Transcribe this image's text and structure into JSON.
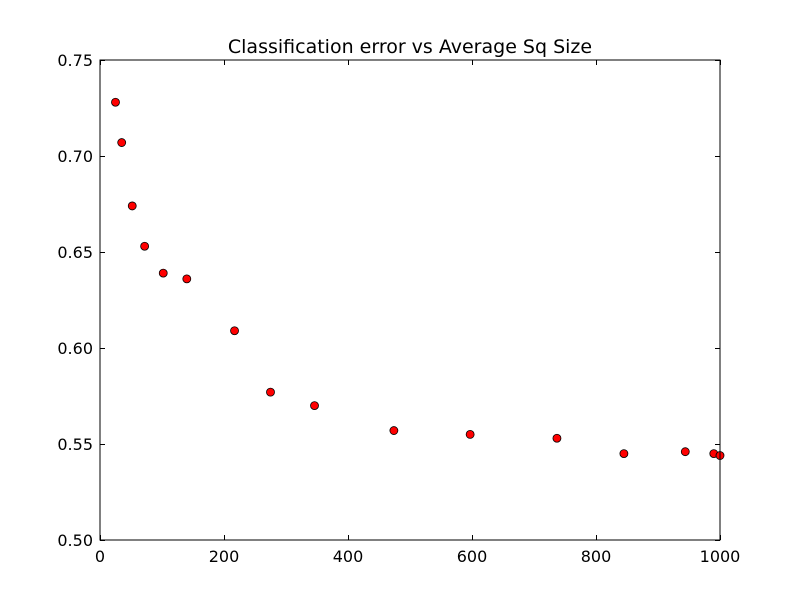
{
  "chart_data": {
    "type": "scatter",
    "title": "Classification error vs Average Sq Size",
    "xlabel": "",
    "ylabel": "",
    "xlim": [
      0,
      1000
    ],
    "ylim": [
      0.5,
      0.75
    ],
    "x_ticks": [
      0,
      200,
      400,
      600,
      800,
      1000
    ],
    "x_tick_labels": [
      "0",
      "200",
      "400",
      "600",
      "800",
      "1000"
    ],
    "y_ticks": [
      0.5,
      0.55,
      0.6,
      0.65,
      0.7,
      0.75
    ],
    "y_tick_labels": [
      "0.50",
      "0.55",
      "0.60",
      "0.65",
      "0.70",
      "0.75"
    ],
    "grid": false,
    "legend": false,
    "marker_color": "#ff0000",
    "marker_edge_color": "#000000",
    "series": [
      {
        "x": [
          25,
          35,
          52,
          72,
          102,
          140,
          217,
          275,
          346,
          474,
          597,
          737,
          845,
          944,
          990,
          1000
        ],
        "y": [
          0.728,
          0.707,
          0.674,
          0.653,
          0.639,
          0.636,
          0.609,
          0.577,
          0.57,
          0.557,
          0.555,
          0.553,
          0.545,
          0.546,
          0.545,
          0.544
        ]
      }
    ]
  }
}
